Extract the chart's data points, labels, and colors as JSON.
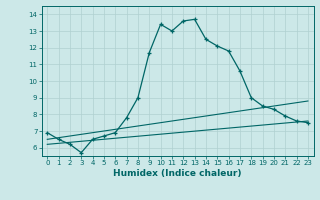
{
  "title": "",
  "xlabel": "Humidex (Indice chaleur)",
  "ylabel": "",
  "background_color": "#cce8e8",
  "grid_color": "#b0d0d0",
  "line_color": "#006666",
  "xlim": [
    -0.5,
    23.5
  ],
  "ylim": [
    5.5,
    14.5
  ],
  "xticks": [
    0,
    1,
    2,
    3,
    4,
    5,
    6,
    7,
    8,
    9,
    10,
    11,
    12,
    13,
    14,
    15,
    16,
    17,
    18,
    19,
    20,
    21,
    22,
    23
  ],
  "yticks": [
    6,
    7,
    8,
    9,
    10,
    11,
    12,
    13,
    14
  ],
  "curve1_x": [
    0,
    1,
    2,
    3,
    4,
    5,
    6,
    7,
    8,
    9,
    10,
    11,
    12,
    13,
    14,
    15,
    16,
    17,
    18,
    19,
    20,
    21,
    22,
    23
  ],
  "curve1_y": [
    6.9,
    6.5,
    6.2,
    5.7,
    6.5,
    6.7,
    6.9,
    7.8,
    9.0,
    11.7,
    13.4,
    13.0,
    13.6,
    13.7,
    12.5,
    12.1,
    11.8,
    10.6,
    9.0,
    8.5,
    8.3,
    7.9,
    7.6,
    7.5
  ],
  "curve2_x": [
    0,
    23
  ],
  "curve2_y": [
    6.5,
    8.8
  ],
  "curve3_x": [
    0,
    23
  ],
  "curve3_y": [
    6.2,
    7.6
  ]
}
